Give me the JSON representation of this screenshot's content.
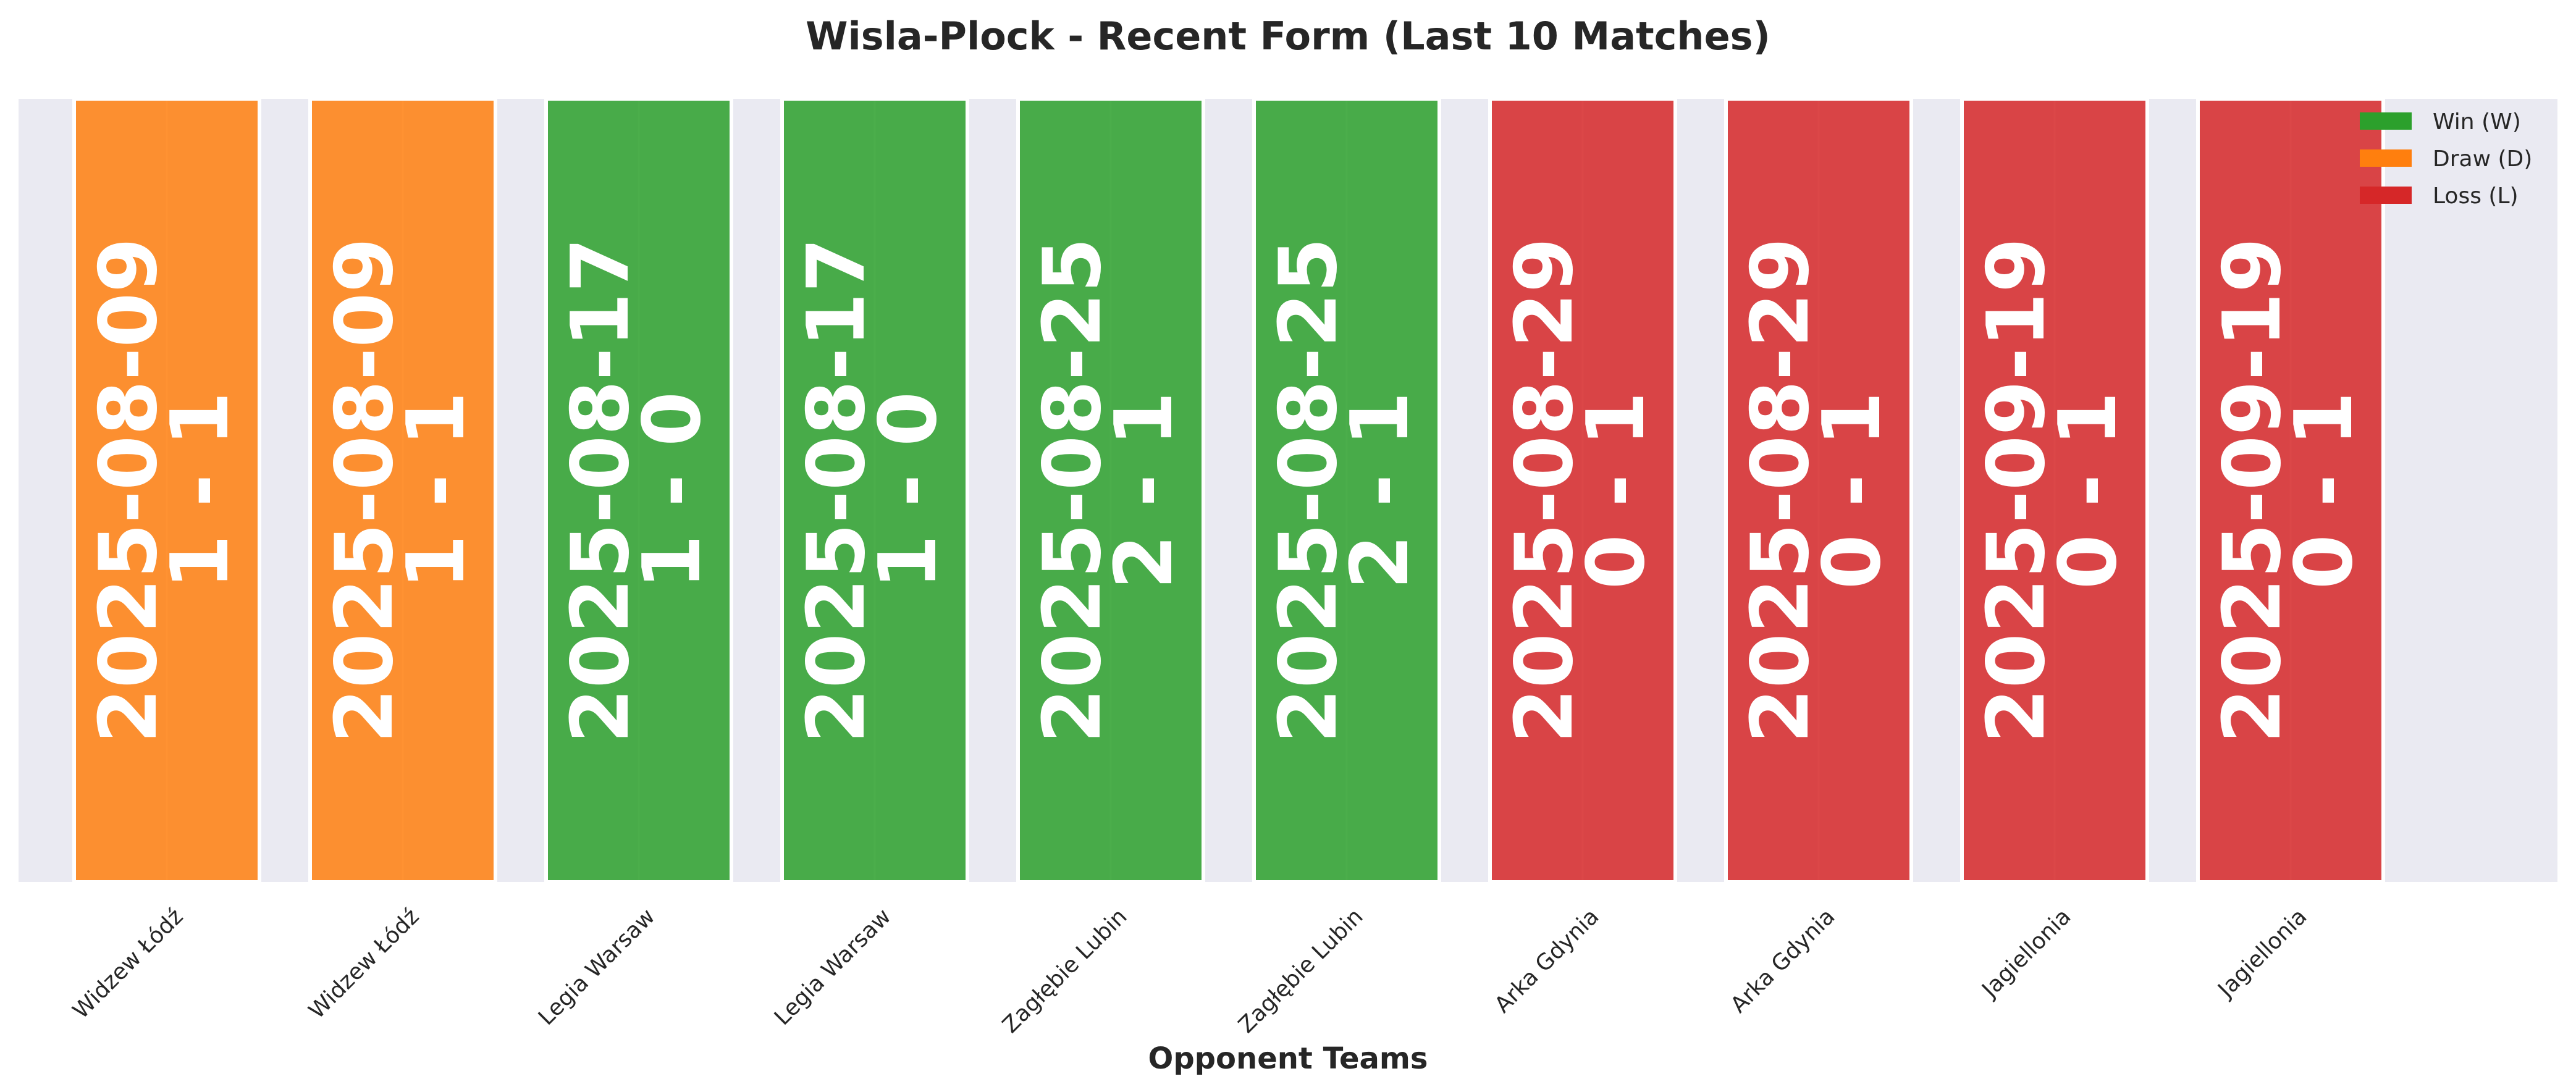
{
  "chart_data": {
    "type": "bar",
    "title": "Wisla-Plock - Recent Form (Last 10 Matches)",
    "xlabel": "Opponent Teams",
    "ylabel": "",
    "categories": [
      "Widzew Łódź",
      "Widzew Łódź",
      "Legia Warsaw",
      "Legia Warsaw",
      "Zagłębie Lubin",
      "Zagłębie Lubin",
      "Arka Gdynia",
      "Arka Gdynia",
      "Jagiellonia",
      "Jagiellonia"
    ],
    "values": [
      1,
      1,
      1,
      1,
      1,
      1,
      1,
      1,
      1,
      1
    ],
    "results": [
      "D",
      "D",
      "W",
      "W",
      "W",
      "W",
      "L",
      "L",
      "L",
      "L"
    ],
    "dates": [
      "2025-08-09",
      "2025-08-09",
      "2025-08-17",
      "2025-08-17",
      "2025-08-25",
      "2025-08-25",
      "2025-08-29",
      "2025-08-29",
      "2025-09-19",
      "2025-09-19"
    ],
    "scores": [
      "1 - 1",
      "1 - 1",
      "1 - 0",
      "1 - 0",
      "2 - 1",
      "2 - 1",
      "0 - 1",
      "0 - 1",
      "0 - 1",
      "0 - 1"
    ],
    "colors": {
      "W": "#2ca02c",
      "D": "#ff7f0e",
      "L": "#d62728",
      "plot_background": "#eaeaf2"
    },
    "legend": {
      "placement": "top-right",
      "entries": [
        {
          "key": "W",
          "label": "Win (W)"
        },
        {
          "key": "D",
          "label": "Draw (D)"
        },
        {
          "key": "L",
          "label": "Loss (L)"
        }
      ]
    },
    "grid": true,
    "ylim": [
      0,
      1
    ]
  }
}
